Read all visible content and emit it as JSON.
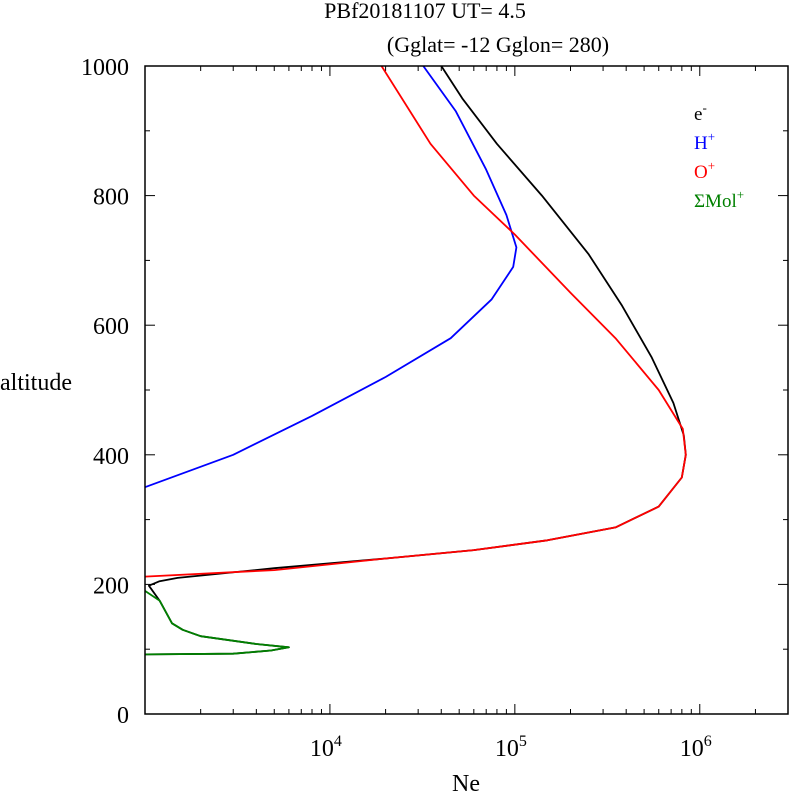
{
  "title_line1": "PBf20181107   UT=  4.5",
  "title_line2": "(Gglat= -12   Gglon=  280)",
  "ylabel": "altitude",
  "xlabel": "Ne",
  "legend": [
    {
      "base": "e",
      "sup": "-",
      "color": "#000000"
    },
    {
      "base": "H",
      "sup": "+",
      "color": "#0000ff"
    },
    {
      "base": "O",
      "sup": "+",
      "color": "#ff0000"
    },
    {
      "base": "ΣMol",
      "sup": "+",
      "color": "#008000"
    }
  ],
  "chart_data": {
    "type": "line",
    "x_scale": "log",
    "xlim": [
      1000,
      3000000
    ],
    "ylim": [
      0,
      1000
    ],
    "yticks": [
      "0",
      "200",
      "400",
      "600",
      "800",
      "1000"
    ],
    "xticks": [
      {
        "value": 10000,
        "base": "10",
        "exp": "4"
      },
      {
        "value": 100000,
        "base": "10",
        "exp": "5"
      },
      {
        "value": 1000000,
        "base": "10",
        "exp": "6"
      }
    ],
    "series": [
      {
        "name": "e-",
        "color": "#000000",
        "points": [
          [
            1000,
            92
          ],
          [
            3000,
            93
          ],
          [
            4800,
            98
          ],
          [
            6000,
            103
          ],
          [
            4000,
            108
          ],
          [
            2000,
            120
          ],
          [
            1600,
            130
          ],
          [
            1400,
            140
          ],
          [
            1200,
            175
          ],
          [
            1050,
            198
          ],
          [
            1200,
            205
          ],
          [
            1500,
            210
          ],
          [
            5000,
            225
          ],
          [
            20000,
            240
          ],
          [
            60000,
            253
          ],
          [
            150000,
            268
          ],
          [
            350000,
            288
          ],
          [
            600000,
            320
          ],
          [
            800000,
            365
          ],
          [
            840000,
            400
          ],
          [
            820000,
            430
          ],
          [
            720000,
            480
          ],
          [
            550000,
            550
          ],
          [
            380000,
            630
          ],
          [
            250000,
            710
          ],
          [
            140000,
            800
          ],
          [
            80000,
            880
          ],
          [
            52000,
            950
          ],
          [
            40000,
            1000
          ]
        ]
      },
      {
        "name": "H+",
        "color": "#0000ff",
        "points": [
          [
            1000,
            350
          ],
          [
            3000,
            400
          ],
          [
            8000,
            460
          ],
          [
            20000,
            520
          ],
          [
            45000,
            580
          ],
          [
            75000,
            640
          ],
          [
            98000,
            690
          ],
          [
            102000,
            720
          ],
          [
            90000,
            770
          ],
          [
            70000,
            840
          ],
          [
            48000,
            930
          ],
          [
            32000,
            1000
          ]
        ]
      },
      {
        "name": "O+",
        "color": "#ff0000",
        "points": [
          [
            1000,
            212
          ],
          [
            5000,
            222
          ],
          [
            20000,
            240
          ],
          [
            60000,
            253
          ],
          [
            150000,
            268
          ],
          [
            350000,
            288
          ],
          [
            600000,
            320
          ],
          [
            800000,
            365
          ],
          [
            840000,
            400
          ],
          [
            810000,
            440
          ],
          [
            600000,
            500
          ],
          [
            350000,
            580
          ],
          [
            200000,
            650
          ],
          [
            100000,
            740
          ],
          [
            60000,
            800
          ],
          [
            35000,
            880
          ],
          [
            19000,
            1000
          ]
        ]
      },
      {
        "name": "ΣMol+",
        "color": "#008000",
        "points": [
          [
            1000,
            92
          ],
          [
            3000,
            93
          ],
          [
            4800,
            98
          ],
          [
            6000,
            103
          ],
          [
            4000,
            108
          ],
          [
            2000,
            120
          ],
          [
            1600,
            130
          ],
          [
            1400,
            140
          ],
          [
            1200,
            175
          ],
          [
            1000,
            190
          ]
        ]
      }
    ]
  }
}
